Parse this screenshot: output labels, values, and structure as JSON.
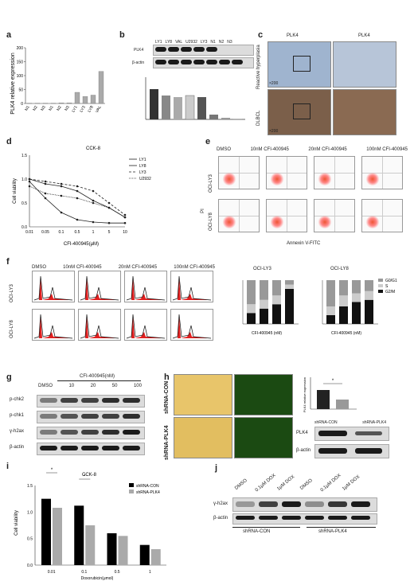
{
  "panels": {
    "a": "a",
    "b": "b",
    "c": "c",
    "d": "d",
    "e": "e",
    "f": "f",
    "g": "g",
    "h": "h",
    "i": "i",
    "j": "j"
  },
  "panel_a": {
    "ylabel": "PLK4 relative expression"
  },
  "panel_b": {
    "lanes": [
      "LY1",
      "LY8",
      "VAL",
      "U2932",
      "LY3",
      "N1",
      "N2",
      "N3"
    ],
    "row1": "PLK4",
    "row2": "β-actin",
    "ylabel": "PLK4 relative protein expression"
  },
  "panel_c": {
    "col1": "PLK4",
    "col2": "PLK4",
    "row1": "Reactive hyperplasia",
    "row2": "DLBCL",
    "mag1": "×200",
    "mag2": "×200"
  },
  "panel_d": {
    "title": "CCK-8",
    "ylabel": "Cell viability",
    "xlabel": "CFI-400945(μM)",
    "legend": [
      "LY1",
      "LY8",
      "LY3",
      "U2932"
    ]
  },
  "panel_e": {
    "cols": [
      "DMSO",
      "10nM CFI-400945",
      "20nM CFI-400945",
      "100nM CFI-400945"
    ],
    "rows": [
      "OCI-LY3",
      "OCI-LY8"
    ],
    "ylabel": "PI",
    "xlabel": "Annexin V-FITC"
  },
  "panel_f": {
    "cols": [
      "DMSO",
      "10nM CFI-400945",
      "20nM CFI-400945",
      "100nM CFI-400945"
    ],
    "rows": [
      "OCI-LY3",
      "OCI-LY8"
    ],
    "bar1_title": "OCI-LY3",
    "bar2_title": "OCI-LY8",
    "legend": [
      "G0/G1",
      "S",
      "G2/M"
    ],
    "xlabel": "CFI-400945 (nM)"
  },
  "panel_g": {
    "header": "CFI-400945(nM)",
    "lanes": [
      "DMSO",
      "10",
      "20",
      "50",
      "100"
    ],
    "rows": [
      "p-chk2",
      "p-chk1",
      "γ-h2ax",
      "β-actin"
    ]
  },
  "panel_h": {
    "rows": [
      "shRNA-CON",
      "shRNA-PLK4"
    ],
    "ylabel": "PLK4 relative expression",
    "blot_cols": [
      "shRNA-CON",
      "shRNA-PLK4"
    ],
    "blot_rows": [
      "PLK4",
      "β-actin"
    ],
    "sig": "*"
  },
  "panel_i": {
    "title": "CCK-8",
    "ylabel": "Cell viability",
    "xlabel": "Doxorubicin(μmol)",
    "legend": [
      "shRNA-CON",
      "shRNA-PLK4"
    ],
    "sig": "*"
  },
  "panel_j": {
    "lanes": [
      "DMSO",
      "0.1μM DOX",
      "1μM DOX",
      "DMSO",
      "0.1μM DOX",
      "1μM DOX"
    ],
    "rows": [
      "γ-h2ax",
      "β-actin"
    ],
    "groups": [
      "shRNA-CON",
      "shRNA-PLK4"
    ]
  },
  "chart_data": [
    {
      "type": "bar",
      "categories": [
        "N1",
        "N2",
        "N3",
        "N1",
        "N2",
        "N3",
        "LY1",
        "LY3",
        "LY8",
        "VAL"
      ],
      "values": [
        1,
        1,
        1,
        1,
        2,
        2,
        40,
        25,
        30,
        115
      ],
      "ylim": [
        0,
        200
      ]
    },
    {
      "type": "line",
      "x": [
        0.01,
        0.05,
        0.1,
        0.5,
        1,
        5,
        10
      ],
      "series": [
        {
          "name": "LY1",
          "values": [
            1.0,
            0.9,
            0.85,
            0.75,
            0.55,
            0.4,
            0.2
          ]
        },
        {
          "name": "LY8",
          "values": [
            0.95,
            0.6,
            0.3,
            0.15,
            0.1,
            0.08,
            0.08
          ]
        },
        {
          "name": "LY3",
          "values": [
            1.0,
            0.95,
            0.9,
            0.85,
            0.75,
            0.5,
            0.25
          ]
        },
        {
          "name": "U2932",
          "values": [
            0.85,
            0.7,
            0.65,
            0.6,
            0.5,
            0.4,
            0.2
          ]
        }
      ],
      "ylim": [
        0,
        1.5
      ]
    },
    {
      "type": "bar",
      "categories": [
        "0.01",
        "0.1",
        "0.5",
        "1"
      ],
      "series": [
        {
          "name": "shRNA-CON",
          "values": [
            1.25,
            1.12,
            0.6,
            0.38
          ]
        },
        {
          "name": "shRNA-PLK4",
          "values": [
            1.08,
            0.75,
            0.55,
            0.3
          ]
        }
      ],
      "ylim": [
        0,
        1.5
      ]
    }
  ]
}
